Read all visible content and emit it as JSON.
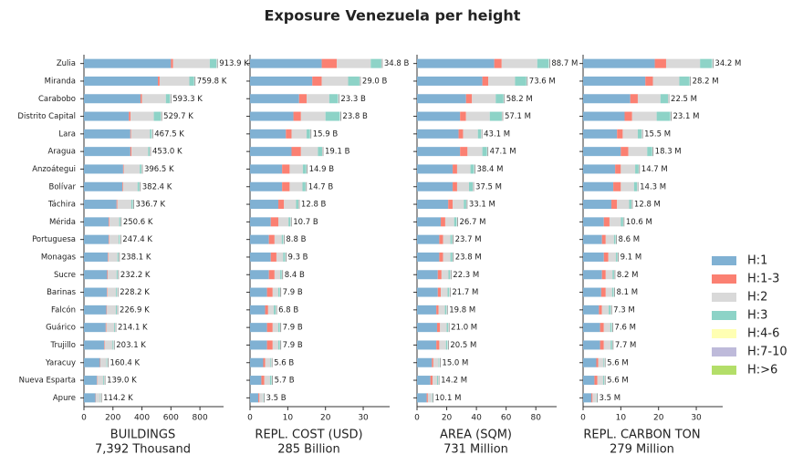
{
  "title": "Exposure Venezuela per height",
  "chart_data": [
    {
      "type": "barh",
      "xlabel": "BUILDINGS",
      "xlabel_sub": "7,392 Thousand",
      "categories": [
        "Zulia",
        "Miranda",
        "Carabobo",
        "Distrito Capital",
        "Lara",
        "Aragua",
        "Anzoátegui",
        "Bolívar",
        "Táchira",
        "Mérida",
        "Portuguesa",
        "Monagas",
        "Sucre",
        "Barinas",
        "Falcón",
        "Guárico",
        "Trujillo",
        "Yaracuy",
        "Nueva Esparta",
        "Apure"
      ],
      "xlim": [
        0,
        963
      ],
      "xticks": [
        0,
        200,
        400,
        600,
        800
      ],
      "totals": [
        913.9,
        759.8,
        593.3,
        529.7,
        467.5,
        453.0,
        396.5,
        382.4,
        336.7,
        250.6,
        247.4,
        238.1,
        232.2,
        228.2,
        226.9,
        214.1,
        203.1,
        160.4,
        139.0,
        114.2
      ],
      "total_labels": [
        "913.9 K",
        "759.8 K",
        "593.3 K",
        "529.7 K",
        "467.5 K",
        "453.0 K",
        "396.5 K",
        "382.4 K",
        "336.7 K",
        "250.6 K",
        "247.4 K",
        "238.1 K",
        "232.2 K",
        "228.2 K",
        "226.9 K",
        "214.1 K",
        "203.1 K",
        "160.4 K",
        "139.0 K",
        "114.2 K"
      ],
      "series": [
        {
          "name": "H:1",
          "color": "#80b1d3",
          "values": [
            600,
            510,
            390,
            310,
            320,
            320,
            270,
            265,
            225,
            170,
            170,
            165,
            160,
            158,
            155,
            150,
            140,
            110,
            90,
            80
          ]
        },
        {
          "name": "H:1-3",
          "color": "#fb8072",
          "values": [
            15,
            12,
            10,
            12,
            5,
            8,
            5,
            5,
            5,
            5,
            4,
            4,
            5,
            4,
            4,
            4,
            4,
            3,
            3,
            2
          ]
        },
        {
          "name": "H:2",
          "color": "#d9d9d9",
          "values": [
            253,
            205,
            165,
            160,
            130,
            115,
            110,
            100,
            97,
            68,
            66,
            62,
            60,
            59,
            61,
            54,
            53,
            42,
            40,
            29
          ]
        },
        {
          "name": "H:3",
          "color": "#8dd3c7",
          "values": [
            46,
            33,
            28,
            48,
            12,
            10,
            11,
            12,
            10,
            8,
            7,
            7,
            7,
            7,
            7,
            6,
            6,
            5,
            6,
            3
          ]
        },
        {
          "name": "H:4-6",
          "color": "#ffffb3",
          "values": [
            0,
            0,
            0,
            0,
            0,
            0,
            0,
            0,
            0,
            0,
            0,
            0,
            0,
            0,
            0,
            0,
            0,
            0,
            0,
            0
          ]
        },
        {
          "name": "H:7-10",
          "color": "#bebada",
          "values": [
            0,
            0,
            0,
            0,
            0,
            0,
            0,
            0,
            0,
            0,
            0,
            0,
            0,
            0,
            0,
            0,
            0,
            0,
            0,
            0
          ]
        },
        {
          "name": "H:>6",
          "color": "#b3de69",
          "values": [
            0,
            0,
            0,
            0,
            0,
            0,
            0,
            0,
            0,
            0,
            0,
            0,
            0,
            0,
            0,
            0,
            0,
            0,
            0,
            0
          ]
        }
      ]
    },
    {
      "type": "barh",
      "xlabel": "REPL. COST (USD)",
      "xlabel_sub": "285 Billion",
      "xlim": [
        0,
        37
      ],
      "xticks": [
        0,
        10,
        20,
        30
      ],
      "totals": [
        34.8,
        29.0,
        23.3,
        23.8,
        15.9,
        19.1,
        14.9,
        14.7,
        12.8,
        10.7,
        8.8,
        9.3,
        8.4,
        7.9,
        6.8,
        7.9,
        7.9,
        5.6,
        5.7,
        3.5
      ],
      "total_labels": [
        "34.8 B",
        "29.0 B",
        "23.3 B",
        "23.8 B",
        "15.9 B",
        "19.1 B",
        "14.9 B",
        "14.7 B",
        "12.8 B",
        "10.7 B",
        "8.8 B",
        "9.3 B",
        "8.4 B",
        "7.9 B",
        "6.8 B",
        "7.9 B",
        "7.9 B",
        "5.6 B",
        "5.7 B",
        "3.5 B"
      ],
      "series": [
        {
          "color": "#80b1d3",
          "values": [
            19,
            16.5,
            13,
            11.5,
            9.5,
            11,
            8.5,
            8.5,
            7.5,
            5.5,
            5,
            5.5,
            5,
            4.5,
            4,
            4.5,
            4.5,
            3.5,
            3,
            2.2
          ]
        },
        {
          "color": "#fb8072",
          "values": [
            4,
            2.5,
            2,
            2,
            1.5,
            2.5,
            2,
            2,
            1.5,
            2,
            1.5,
            1.5,
            1.5,
            1.5,
            0.8,
            1.5,
            1.5,
            0.5,
            0.8,
            0.3
          ]
        },
        {
          "color": "#d9d9d9",
          "values": [
            9,
            7,
            6,
            6.5,
            4,
            4.5,
            3.5,
            3.4,
            3.2,
            2.7,
            1.9,
            1.8,
            1.5,
            1.5,
            1.5,
            1.5,
            1.5,
            1.4,
            1.5,
            0.9
          ]
        },
        {
          "color": "#8dd3c7",
          "values": [
            2.8,
            3,
            2.3,
            3.8,
            0.9,
            1.1,
            0.9,
            0.8,
            0.6,
            0.5,
            0.4,
            0.5,
            0.4,
            0.4,
            0.5,
            0.4,
            0.4,
            0.2,
            0.4,
            0.1
          ]
        },
        {
          "color": "#ffffb3",
          "values": [
            0,
            0,
            0,
            0,
            0,
            0,
            0,
            0,
            0,
            0,
            0,
            0,
            0,
            0,
            0,
            0,
            0,
            0,
            0,
            0
          ]
        },
        {
          "color": "#bebada",
          "values": [
            0,
            0,
            0,
            0,
            0,
            0,
            0,
            0,
            0,
            0,
            0,
            0,
            0,
            0,
            0,
            0,
            0,
            0,
            0,
            0
          ]
        },
        {
          "color": "#b3de69",
          "values": [
            0,
            0,
            0,
            0,
            0,
            0,
            0,
            0,
            0,
            0,
            0,
            0,
            0,
            0,
            0,
            0,
            0,
            0,
            0,
            0
          ]
        }
      ]
    },
    {
      "type": "barh",
      "xlabel": "AREA (SQM)",
      "xlabel_sub": "731 Million",
      "xlim": [
        0,
        94
      ],
      "xticks": [
        0,
        20,
        40,
        60,
        80
      ],
      "totals": [
        88.7,
        73.6,
        58.2,
        57.1,
        43.1,
        47.1,
        38.4,
        37.5,
        33.1,
        26.7,
        23.7,
        23.8,
        22.3,
        21.7,
        19.8,
        21.0,
        20.5,
        15.0,
        14.2,
        10.1
      ],
      "total_labels": [
        "88.7 M",
        "73.6 M",
        "58.2 M",
        "57.1 M",
        "43.1 M",
        "47.1 M",
        "38.4 M",
        "37.5 M",
        "33.1 M",
        "26.7 M",
        "23.7 M",
        "23.8 M",
        "22.3 M",
        "21.7 M",
        "19.8 M",
        "21.0 M",
        "20.5 M",
        "15.0 M",
        "14.2 M",
        "10.1 M"
      ],
      "series": [
        {
          "color": "#80b1d3",
          "values": [
            52,
            44,
            33,
            29,
            28,
            29,
            24,
            24,
            21,
            16,
            15,
            15,
            14,
            14,
            13,
            13.5,
            13,
            10,
            9,
            6.5
          ]
        },
        {
          "color": "#fb8072",
          "values": [
            5,
            4,
            4,
            4,
            3,
            5,
            3,
            3,
            3,
            3,
            2.5,
            2.5,
            2.5,
            2,
            1.5,
            2,
            2,
            1,
            1.5,
            0.8
          ]
        },
        {
          "color": "#d9d9d9",
          "values": [
            24,
            18,
            16,
            16,
            10,
            10,
            9,
            8,
            7.5,
            6,
            5,
            5,
            4.7,
            4.6,
            4.3,
            4.5,
            4.5,
            3.5,
            3,
            2.5
          ]
        },
        {
          "color": "#8dd3c7",
          "values": [
            7.7,
            7.6,
            5.2,
            8.1,
            2.1,
            3.1,
            2.4,
            2.5,
            1.6,
            1.7,
            1.2,
            1.3,
            1.1,
            1.1,
            1,
            1,
            1,
            0.5,
            0.7,
            0.3
          ]
        },
        {
          "color": "#ffffb3",
          "values": [
            0,
            0,
            0,
            0,
            0,
            0,
            0,
            0,
            0,
            0,
            0,
            0,
            0,
            0,
            0,
            0,
            0,
            0,
            0,
            0
          ]
        },
        {
          "color": "#bebada",
          "values": [
            0,
            0,
            0,
            0,
            0,
            0,
            0,
            0,
            0,
            0,
            0,
            0,
            0,
            0,
            0,
            0,
            0,
            0,
            0,
            0
          ]
        },
        {
          "color": "#b3de69",
          "values": [
            0,
            0,
            0,
            0,
            0,
            0,
            0,
            0,
            0,
            0,
            0,
            0,
            0,
            0,
            0,
            0,
            0,
            0,
            0,
            0
          ]
        }
      ]
    },
    {
      "type": "barh",
      "xlabel": "REPL. CARBON TON",
      "xlabel_sub": "279 Million",
      "xlim": [
        0,
        37
      ],
      "xticks": [
        0,
        10,
        20,
        30
      ],
      "totals": [
        34.2,
        28.2,
        22.5,
        23.1,
        15.5,
        18.3,
        14.7,
        14.3,
        12.8,
        10.6,
        8.6,
        9.1,
        8.2,
        8.1,
        7.3,
        7.6,
        7.7,
        5.6,
        5.6,
        3.5
      ],
      "total_labels": [
        "34.2 M",
        "28.2 M",
        "22.5 M",
        "23.1 M",
        "15.5 M",
        "18.3 M",
        "14.7 M",
        "14.3 M",
        "12.8 M",
        "10.6 M",
        "8.6 M",
        "9.1 M",
        "8.2 M",
        "8.1 M",
        "7.3 M",
        "7.6 M",
        "7.7 M",
        "5.6 M",
        "5.6 M",
        "3.5 M"
      ],
      "series": [
        {
          "color": "#80b1d3",
          "values": [
            19,
            16.5,
            12.5,
            11,
            9,
            10,
            8.5,
            8,
            7.5,
            5.5,
            5,
            5.5,
            5,
            4.8,
            4.2,
            4.5,
            4.5,
            3.5,
            3,
            2.2
          ]
        },
        {
          "color": "#fb8072",
          "values": [
            3,
            2,
            2,
            2,
            1.5,
            2,
            1.5,
            2,
            1.5,
            1.5,
            1,
            1.2,
            1,
            1.2,
            0.8,
            1,
            1,
            0.5,
            0.8,
            0.3
          ]
        },
        {
          "color": "#d9d9d9",
          "values": [
            9,
            7,
            6,
            6.5,
            4,
            5,
            3.8,
            3.5,
            3.2,
            3,
            2.2,
            2,
            1.8,
            1.7,
            1.8,
            1.7,
            1.8,
            1.4,
            1.5,
            0.9
          ]
        },
        {
          "color": "#8dd3c7",
          "values": [
            3.2,
            2.7,
            2,
            3.6,
            1,
            1.3,
            0.9,
            0.8,
            0.6,
            0.6,
            0.4,
            0.4,
            0.4,
            0.4,
            0.5,
            0.4,
            0.4,
            0.2,
            0.3,
            0.1
          ]
        },
        {
          "color": "#ffffb3",
          "values": [
            0,
            0,
            0,
            0,
            0,
            0,
            0,
            0,
            0,
            0,
            0,
            0,
            0,
            0,
            0,
            0,
            0,
            0,
            0,
            0
          ]
        },
        {
          "color": "#bebada",
          "values": [
            0,
            0,
            0,
            0,
            0,
            0,
            0,
            0,
            0,
            0,
            0,
            0,
            0,
            0,
            0,
            0,
            0,
            0,
            0,
            0
          ]
        },
        {
          "color": "#b3de69",
          "values": [
            0,
            0,
            0,
            0,
            0,
            0,
            0,
            0,
            0,
            0,
            0,
            0,
            0,
            0,
            0,
            0,
            0,
            0,
            0,
            0
          ]
        }
      ]
    }
  ]
}
